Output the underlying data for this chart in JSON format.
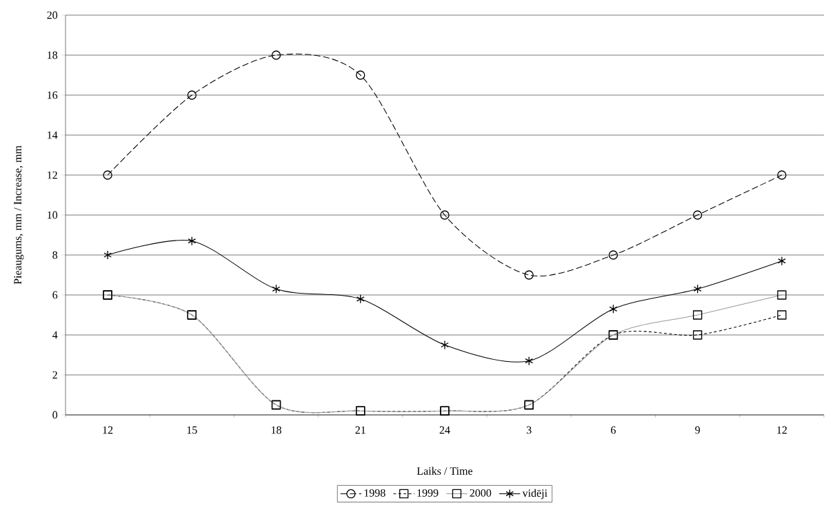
{
  "chart_data": {
    "type": "line",
    "xlabel": "Laiks / Time",
    "ylabel": "Pieaugums, mm / Increase, mm",
    "categories": [
      "12",
      "15",
      "18",
      "21",
      "24",
      "3",
      "6",
      "9",
      "12"
    ],
    "series": [
      {
        "name": "1998",
        "color": "#000000",
        "marker": "circle",
        "line_style": "dashed",
        "values": [
          12,
          16,
          18,
          17,
          10,
          7,
          8,
          10,
          12
        ]
      },
      {
        "name": "1999",
        "color": "#000000",
        "marker": "square",
        "line_style": "dotted",
        "values": [
          6,
          5,
          0.5,
          0.2,
          0.2,
          0.5,
          4,
          4,
          5
        ]
      },
      {
        "name": "2000",
        "color": "#999999",
        "marker": "square",
        "line_style": "solid",
        "values": [
          6,
          5,
          0.5,
          0.2,
          0.2,
          0.5,
          4,
          5,
          6
        ]
      },
      {
        "name": "vidēji",
        "color": "#000000",
        "marker": "cross",
        "line_style": "solid",
        "values": [
          8,
          8.7,
          6.3,
          5.8,
          3.5,
          2.7,
          5.3,
          6.3,
          7.7
        ]
      }
    ],
    "ylim": [
      0,
      20
    ],
    "yticks": [
      0,
      2,
      4,
      6,
      8,
      10,
      12,
      14,
      16,
      18,
      20
    ],
    "grid": "y",
    "legend": "bottom"
  }
}
